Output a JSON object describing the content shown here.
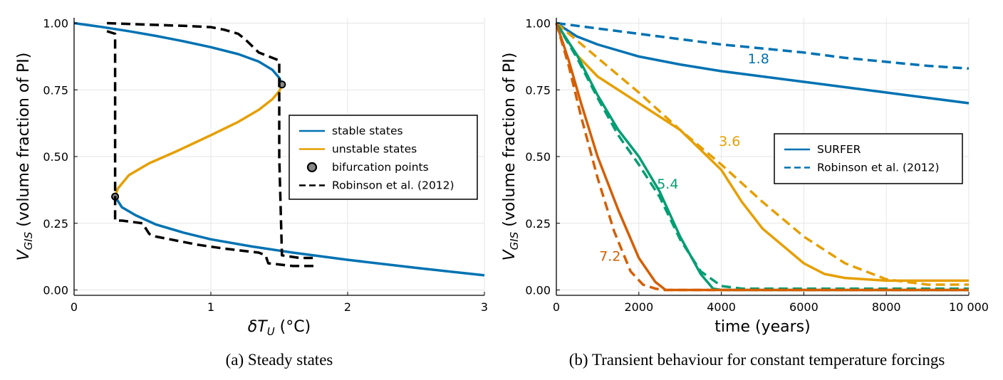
{
  "colors": {
    "blue": "#0072b2",
    "orange": "#e69f00",
    "green": "#009e73",
    "red": "#d55e00",
    "black": "#000000",
    "marker_fill": "#888888"
  },
  "chart_data": [
    {
      "type": "line",
      "caption": "(a) Steady states",
      "xlabel": "δT_U (°C)",
      "ylabel": "V_GIS (volume fraction of PI)",
      "xlim": [
        0,
        3
      ],
      "ylim": [
        -0.02,
        1.02
      ],
      "xticks": [
        0,
        1,
        2,
        3
      ],
      "xtick_labels": [
        "0",
        "1",
        "2",
        "3"
      ],
      "yticks": [
        0,
        0.25,
        0.5,
        0.75,
        1.0
      ],
      "ytick_labels": [
        "0.00",
        "0.25",
        "0.50",
        "0.75",
        "1.00"
      ],
      "grid": true,
      "legend_position": "center-right",
      "series": [
        {
          "name": "stable states",
          "style": "solid",
          "color": "blue",
          "x": [
            0,
            0.2,
            0.4,
            0.6,
            0.8,
            1.0,
            1.2,
            1.35,
            1.45,
            1.5,
            1.52
          ],
          "y": [
            1.0,
            0.986,
            0.97,
            0.952,
            0.932,
            0.91,
            0.884,
            0.856,
            0.825,
            0.795,
            0.77
          ]
        },
        {
          "name": "stable states (lower)",
          "style": "solid",
          "color": "blue",
          "legend": false,
          "x": [
            0.3,
            0.35,
            0.45,
            0.6,
            0.8,
            1.0,
            1.3,
            1.6,
            2.0,
            2.5,
            3.0
          ],
          "y": [
            0.35,
            0.31,
            0.28,
            0.245,
            0.215,
            0.19,
            0.163,
            0.14,
            0.113,
            0.083,
            0.055
          ]
        },
        {
          "name": "unstable states",
          "style": "solid",
          "color": "orange",
          "x": [
            0.3,
            0.32,
            0.4,
            0.55,
            0.75,
            1.0,
            1.2,
            1.35,
            1.45,
            1.5,
            1.52
          ],
          "y": [
            0.35,
            0.38,
            0.43,
            0.475,
            0.52,
            0.58,
            0.63,
            0.675,
            0.715,
            0.745,
            0.77
          ]
        },
        {
          "name": "bifurcation points",
          "style": "marker",
          "color": "black",
          "x": [
            0.3,
            1.52
          ],
          "y": [
            0.35,
            0.77
          ]
        },
        {
          "name": "Robinson et al. (2012)",
          "style": "dashed",
          "color": "black",
          "x": [
            0.24,
            0.5,
            0.8,
            1.0,
            1.1,
            1.2,
            1.25,
            1.3,
            1.35,
            1.4,
            1.45,
            1.5,
            1.5,
            1.5,
            1.52,
            1.65,
            1.75
          ],
          "y": [
            1.0,
            0.995,
            0.99,
            0.985,
            0.975,
            0.96,
            0.94,
            0.915,
            0.89,
            0.88,
            0.87,
            0.86,
            0.85,
            0.5,
            0.13,
            0.12,
            0.12
          ]
        },
        {
          "name": "Robinson et al. (2012) lower",
          "style": "dashed",
          "color": "black",
          "legend": false,
          "x": [
            0.24,
            0.3,
            0.3,
            0.3,
            0.35,
            0.5,
            0.55,
            0.6,
            0.9,
            1.1,
            1.35,
            1.4,
            1.42,
            1.6,
            1.75
          ],
          "y": [
            0.97,
            0.96,
            0.7,
            0.26,
            0.26,
            0.25,
            0.21,
            0.2,
            0.17,
            0.155,
            0.14,
            0.13,
            0.1,
            0.09,
            0.09
          ]
        }
      ]
    },
    {
      "type": "line",
      "caption": "(b) Transient behaviour for constant temperature forcings",
      "xlabel": "time (years)",
      "ylabel": "V_GIS (volume fraction of PI)",
      "xlim": [
        0,
        10000
      ],
      "ylim": [
        -0.02,
        1.02
      ],
      "xticks": [
        0,
        2000,
        4000,
        6000,
        8000,
        10000
      ],
      "xtick_labels": [
        "0",
        "2000",
        "4000",
        "6000",
        "8000",
        "10 000"
      ],
      "yticks": [
        0,
        0.25,
        0.5,
        0.75,
        1.0
      ],
      "ytick_labels": [
        "0.00",
        "0.25",
        "0.50",
        "0.75",
        "1.00"
      ],
      "grid": true,
      "legend_position": "center-right",
      "legend": [
        "SURFER",
        "Robinson et al. (2012)"
      ],
      "annotations": [
        {
          "text": "1.8",
          "x": 4900,
          "y": 0.85,
          "color": "blue"
        },
        {
          "text": "3.6",
          "x": 4200,
          "y": 0.54,
          "color": "orange"
        },
        {
          "text": "5.4",
          "x": 2700,
          "y": 0.38,
          "color": "green"
        },
        {
          "text": "7.2",
          "x": 1300,
          "y": 0.11,
          "color": "red"
        }
      ],
      "series": [
        {
          "name": "SURFER",
          "forcing": "1.8",
          "style": "solid",
          "color": "blue",
          "x": [
            0,
            500,
            1000,
            2000,
            3000,
            4000,
            5000,
            6000,
            7000,
            8000,
            9000,
            10000
          ],
          "y": [
            1.0,
            0.95,
            0.92,
            0.875,
            0.845,
            0.82,
            0.8,
            0.78,
            0.76,
            0.74,
            0.72,
            0.7
          ]
        },
        {
          "name": "Robinson et al. (2012)",
          "forcing": "1.8",
          "style": "dashed",
          "color": "blue",
          "x": [
            0,
            1000,
            2000,
            3000,
            4000,
            5000,
            6000,
            7000,
            8000,
            9000,
            10000
          ],
          "y": [
            1.0,
            0.98,
            0.96,
            0.94,
            0.92,
            0.905,
            0.89,
            0.87,
            0.855,
            0.84,
            0.83
          ]
        },
        {
          "name": "SURFER",
          "forcing": "3.6",
          "style": "solid",
          "color": "orange",
          "x": [
            0,
            500,
            1000,
            2000,
            3000,
            4000,
            4500,
            5000,
            6000,
            6500,
            7000,
            8000,
            9000,
            10000
          ],
          "y": [
            1.0,
            0.88,
            0.8,
            0.7,
            0.6,
            0.45,
            0.33,
            0.23,
            0.1,
            0.06,
            0.045,
            0.035,
            0.035,
            0.035
          ]
        },
        {
          "name": "Robinson et al. (2012)",
          "forcing": "3.6",
          "style": "dashed",
          "color": "orange",
          "x": [
            0,
            1000,
            2000,
            3000,
            4000,
            5000,
            6000,
            7000,
            8000,
            9000,
            10000
          ],
          "y": [
            1.0,
            0.87,
            0.74,
            0.6,
            0.47,
            0.33,
            0.2,
            0.1,
            0.04,
            0.02,
            0.02
          ]
        },
        {
          "name": "SURFER",
          "forcing": "5.4",
          "style": "solid",
          "color": "green",
          "x": [
            0,
            500,
            1000,
            1500,
            2000,
            2500,
            3000,
            3500,
            3800,
            4000,
            10000
          ],
          "y": [
            1.0,
            0.88,
            0.73,
            0.6,
            0.5,
            0.37,
            0.2,
            0.06,
            0.005,
            0.0,
            0.0
          ]
        },
        {
          "name": "Robinson et al. (2012)",
          "forcing": "5.4",
          "style": "dashed",
          "color": "green",
          "x": [
            0,
            500,
            1000,
            1500,
            2000,
            2500,
            3000,
            3500,
            4000,
            4500,
            10000
          ],
          "y": [
            1.0,
            0.87,
            0.72,
            0.58,
            0.47,
            0.35,
            0.19,
            0.07,
            0.015,
            0.005,
            0.005
          ]
        },
        {
          "name": "SURFER",
          "forcing": "7.2",
          "style": "solid",
          "color": "red",
          "x": [
            0,
            300,
            600,
            1000,
            1500,
            2000,
            2400,
            2650,
            2800,
            10000
          ],
          "y": [
            1.0,
            0.86,
            0.7,
            0.5,
            0.3,
            0.12,
            0.03,
            0.0,
            0.0,
            0.0
          ]
        },
        {
          "name": "Robinson et al. (2012)",
          "forcing": "7.2",
          "style": "dashed",
          "color": "red",
          "x": [
            0,
            300,
            600,
            1000,
            1400,
            1800,
            2100,
            2400,
            2600,
            10000
          ],
          "y": [
            1.0,
            0.84,
            0.65,
            0.42,
            0.22,
            0.07,
            0.02,
            0.005,
            0.0,
            0.0
          ]
        }
      ]
    }
  ]
}
